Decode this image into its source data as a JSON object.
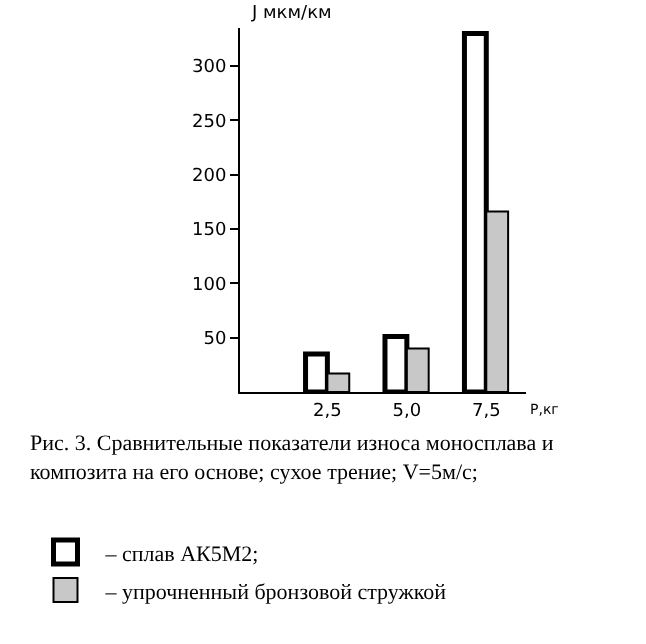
{
  "chart_data": {
    "type": "bar",
    "ylabel": "J мкм/км",
    "xlabel": "Р,кг",
    "categories": [
      "2,5",
      "5,0",
      "7,5"
    ],
    "series": [
      {
        "name": "– сплав АК5М2;",
        "color": "#ffffff",
        "values": [
          35,
          51,
          330
        ]
      },
      {
        "name": "– упрочненный бронзовой стружкой",
        "color": "#c8c8c8",
        "values": [
          17,
          40,
          166
        ]
      }
    ],
    "ylim": [
      0,
      335
    ],
    "yticks": [
      50,
      100,
      150,
      200,
      250,
      300
    ],
    "grid": false,
    "legend": "bottom",
    "annotations": [
      "Рис. 3. Сравнительные показатели износа моносплава и композита на его основе; сухое трение; V=5м/с;"
    ]
  }
}
